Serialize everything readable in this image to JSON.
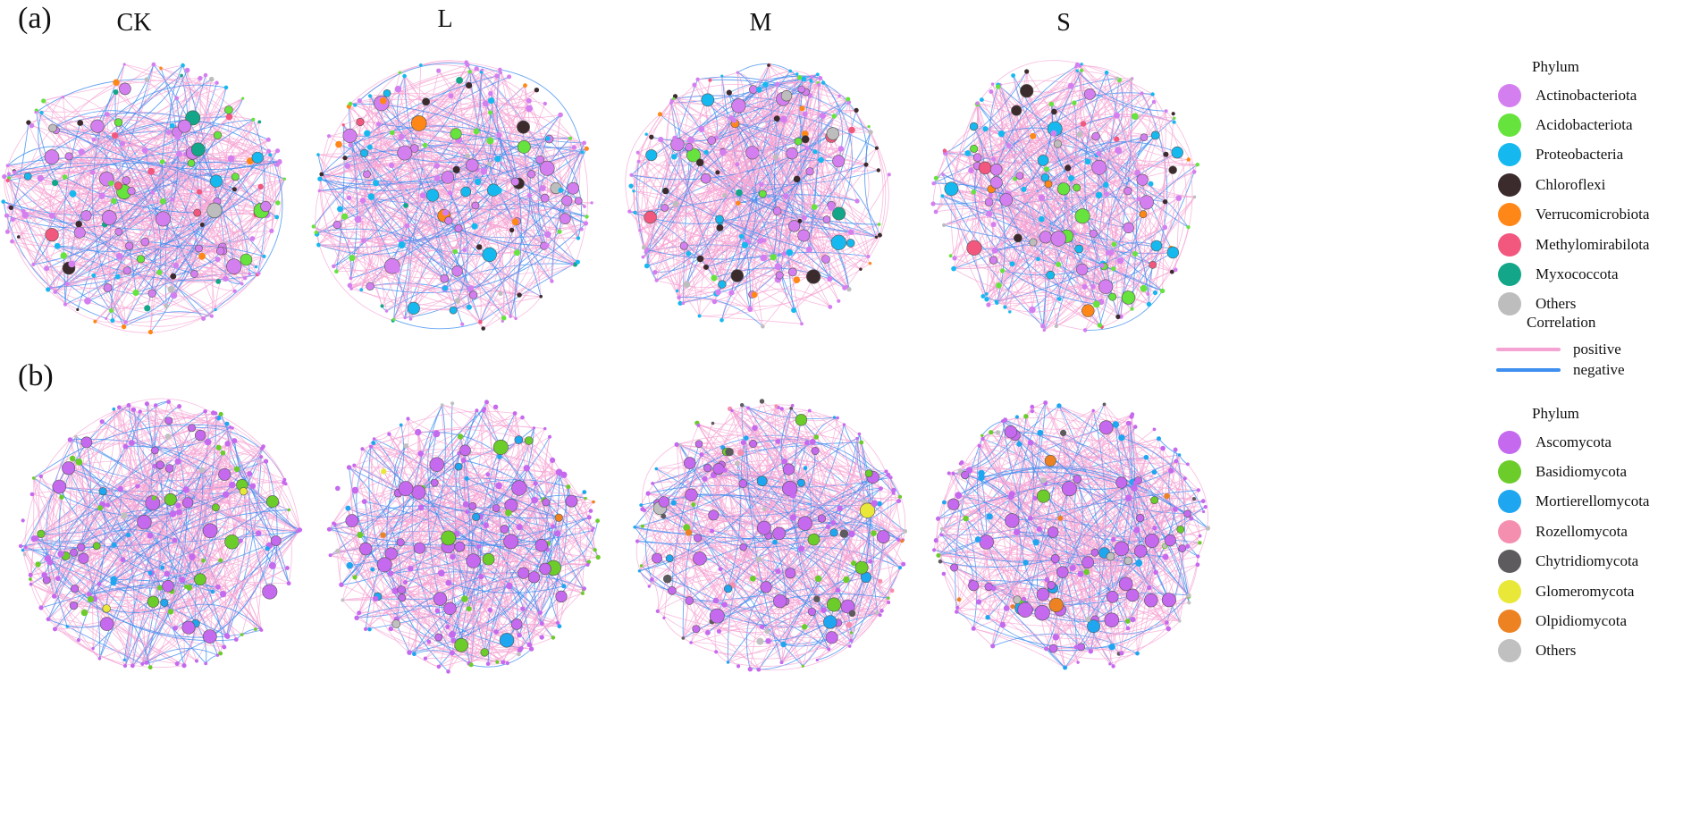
{
  "panels": [
    {
      "letter": "(a)",
      "titles": [
        "CK",
        "L",
        "M",
        "S"
      ]
    },
    {
      "letter": "(b)",
      "titles": []
    }
  ],
  "legend_a": {
    "title": "Phylum",
    "items": [
      {
        "label": "Actinobacteriota",
        "color": "#d47ff0"
      },
      {
        "label": "Acidobacteriota",
        "color": "#66e33c"
      },
      {
        "label": "Proteobacteria",
        "color": "#16b9ef"
      },
      {
        "label": "Chloroflexi",
        "color": "#3b2b2c"
      },
      {
        "label": "Verrucomicrobiota",
        "color": "#ff8717"
      },
      {
        "label": "Methylomirabilota",
        "color": "#f2577e"
      },
      {
        "label": "Myxococcota",
        "color": "#13a688"
      },
      {
        "label": "Others",
        "color": "#bdbdbd"
      }
    ]
  },
  "correlation": {
    "title": "Correlation",
    "items": [
      {
        "label": "positive",
        "color": "#f5a3d3"
      },
      {
        "label": "negative",
        "color": "#3e8ff0"
      }
    ]
  },
  "legend_b": {
    "title": "Phylum",
    "items": [
      {
        "label": "Ascomycota",
        "color": "#c569ee"
      },
      {
        "label": "Basidiomycota",
        "color": "#6bcc2a"
      },
      {
        "label": "Mortierellomycota",
        "color": "#1ea7f0"
      },
      {
        "label": "Rozellomycota",
        "color": "#f58fb0"
      },
      {
        "label": "Chytridiomycota",
        "color": "#5d5b5e"
      },
      {
        "label": "Glomeromycota",
        "color": "#e9e738"
      },
      {
        "label": "Olpidiomycota",
        "color": "#ec8222"
      },
      {
        "label": "Others",
        "color": "#c0c0c0"
      }
    ]
  },
  "networks": [
    {
      "row": "a",
      "col": "CK",
      "weights": [
        40,
        14,
        10,
        5,
        6,
        5,
        3,
        4
      ]
    },
    {
      "row": "a",
      "col": "L",
      "weights": [
        42,
        10,
        20,
        5,
        4,
        2,
        1,
        4
      ]
    },
    {
      "row": "a",
      "col": "M",
      "weights": [
        46,
        10,
        14,
        9,
        4,
        2,
        2,
        3
      ]
    },
    {
      "row": "a",
      "col": "S",
      "weights": [
        36,
        16,
        22,
        8,
        4,
        4,
        1,
        5
      ]
    },
    {
      "row": "b",
      "col": "CK",
      "weights": [
        62,
        18,
        8,
        0,
        0,
        1,
        0,
        2
      ]
    },
    {
      "row": "b",
      "col": "L",
      "weights": [
        62,
        14,
        10,
        0,
        0,
        1,
        2,
        3
      ]
    },
    {
      "row": "b",
      "col": "M",
      "weights": [
        56,
        16,
        12,
        2,
        4,
        1,
        1,
        4
      ]
    },
    {
      "row": "b",
      "col": "S",
      "weights": [
        56,
        10,
        12,
        1,
        4,
        1,
        1,
        6
      ]
    }
  ]
}
